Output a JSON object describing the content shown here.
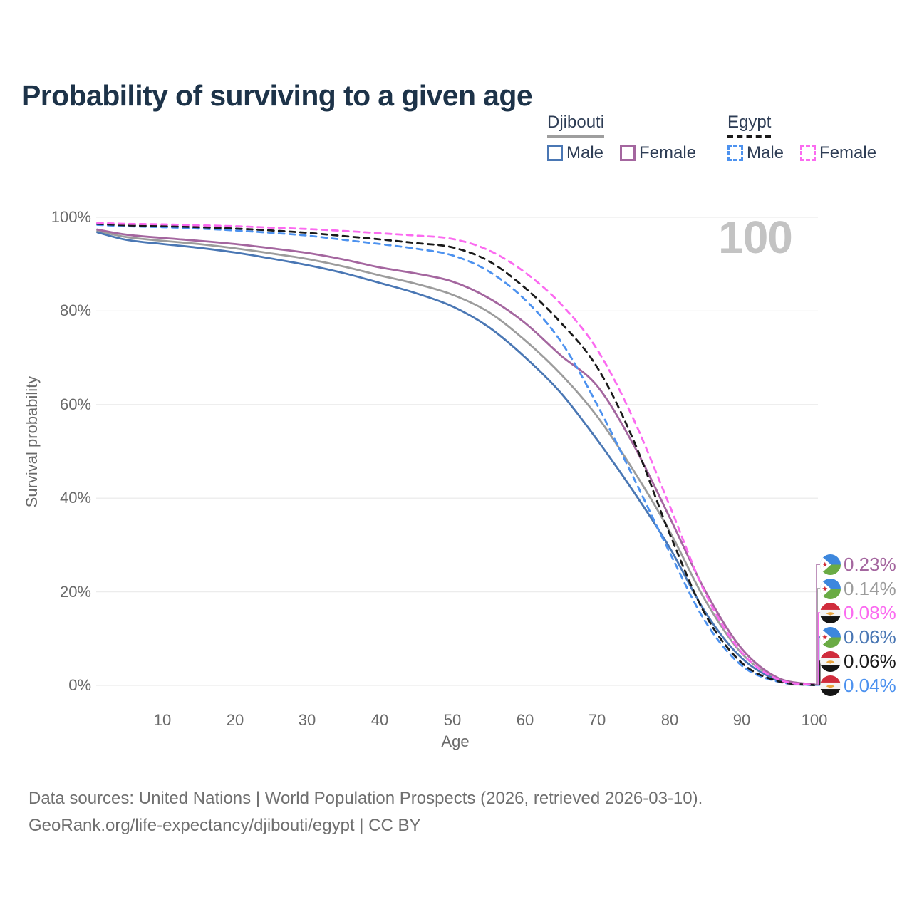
{
  "title": "Probability of surviving to a given age",
  "watermark": "100",
  "legend": {
    "groups": [
      {
        "label": "Djibouti",
        "items": [
          {
            "label": "Male"
          },
          {
            "label": "Female"
          }
        ]
      },
      {
        "label": "Egypt",
        "items": [
          {
            "label": "Male"
          },
          {
            "label": "Female"
          }
        ]
      }
    ]
  },
  "chart_data": {
    "type": "line",
    "title": "Probability of surviving to a given age",
    "xlabel": "Age",
    "ylabel": "Survival probability",
    "xlim": [
      0,
      100
    ],
    "ylim": [
      0,
      100
    ],
    "grid": "horizontal-only",
    "x_ticks": [
      10,
      20,
      30,
      40,
      50,
      60,
      70,
      80,
      90,
      100
    ],
    "y_ticks": [
      "100%",
      "80%",
      "60%",
      "40%",
      "20%",
      "0%"
    ],
    "ages": [
      1,
      5,
      10,
      15,
      20,
      25,
      30,
      35,
      40,
      45,
      50,
      55,
      60,
      65,
      70,
      75,
      80,
      85,
      90,
      95,
      100
    ],
    "series": [
      {
        "name": "Djibouti Total",
        "country": "Djibouti",
        "style": "solid",
        "color": "#9c9c9c",
        "values": [
          97.1,
          95.8,
          95.0,
          94.3,
          93.4,
          92.3,
          91.1,
          89.5,
          87.6,
          85.8,
          83.5,
          79.8,
          73.8,
          66.5,
          57.5,
          46.0,
          33.0,
          18.0,
          6.8,
          1.4,
          0.14
        ]
      },
      {
        "name": "Djibouti Male",
        "country": "Djibouti",
        "style": "solid",
        "color": "#4a77b4",
        "values": [
          96.8,
          95.2,
          94.3,
          93.5,
          92.5,
          91.2,
          89.8,
          88.1,
          86.0,
          83.8,
          81.0,
          76.6,
          70.2,
          62.5,
          52.5,
          41.5,
          29.5,
          15.5,
          5.8,
          1.1,
          0.06
        ]
      },
      {
        "name": "Djibouti Female",
        "country": "Djibouti",
        "style": "solid",
        "color": "#a4669f",
        "values": [
          97.4,
          96.3,
          95.6,
          95.0,
          94.3,
          93.4,
          92.4,
          91.0,
          89.3,
          88.0,
          86.3,
          82.8,
          77.5,
          70.5,
          64.0,
          51.5,
          36.0,
          20.0,
          7.8,
          1.6,
          0.23
        ]
      },
      {
        "name": "Egypt Male",
        "country": "Egypt",
        "style": "dashed",
        "color": "#4d92ef",
        "values": [
          98.4,
          98.1,
          97.9,
          97.6,
          97.2,
          96.7,
          96.1,
          95.2,
          94.3,
          93.3,
          91.9,
          88.5,
          82.5,
          73.5,
          60.0,
          44.5,
          28.5,
          13.5,
          4.2,
          0.8,
          0.04
        ]
      },
      {
        "name": "Egypt Total",
        "country": "Egypt",
        "style": "dashed",
        "color": "#1a1a1a",
        "values": [
          98.6,
          98.3,
          98.1,
          97.9,
          97.6,
          97.2,
          96.7,
          96.0,
          95.3,
          94.5,
          93.6,
          90.7,
          85.0,
          77.5,
          68.0,
          52.5,
          32.5,
          15.0,
          4.8,
          0.9,
          0.06
        ]
      },
      {
        "name": "Egypt Female",
        "country": "Egypt",
        "style": "dashed",
        "color": "#fb6af0",
        "values": [
          98.8,
          98.6,
          98.5,
          98.3,
          98.1,
          97.8,
          97.5,
          97.1,
          96.6,
          96.1,
          95.4,
          93.0,
          88.3,
          81.5,
          71.8,
          57.0,
          38.5,
          19.5,
          7.0,
          1.3,
          0.08
        ]
      }
    ],
    "end_labels": [
      {
        "value": "0.23%",
        "series": "Djibouti Female",
        "flag": "djibouti",
        "color": "#a4669f"
      },
      {
        "value": "0.14%",
        "series": "Djibouti Total",
        "flag": "djibouti",
        "color": "#9c9c9c"
      },
      {
        "value": "0.08%",
        "series": "Egypt Female",
        "flag": "egypt",
        "color": "#fb6af0"
      },
      {
        "value": "0.06%",
        "series": "Djibouti Male",
        "flag": "djibouti",
        "color": "#4a77b4"
      },
      {
        "value": "0.06%",
        "series": "Egypt Total",
        "flag": "egypt",
        "color": "#1a1a1a"
      },
      {
        "value": "0.04%",
        "series": "Egypt Male",
        "flag": "egypt",
        "color": "#4d92ef"
      }
    ]
  },
  "footer": {
    "line1": "Data sources: United Nations | World Population Prospects (2026, retrieved 2026-03-10).",
    "line2": "GeoRank.org/life-expectancy/djibouti/egypt | CC BY"
  }
}
